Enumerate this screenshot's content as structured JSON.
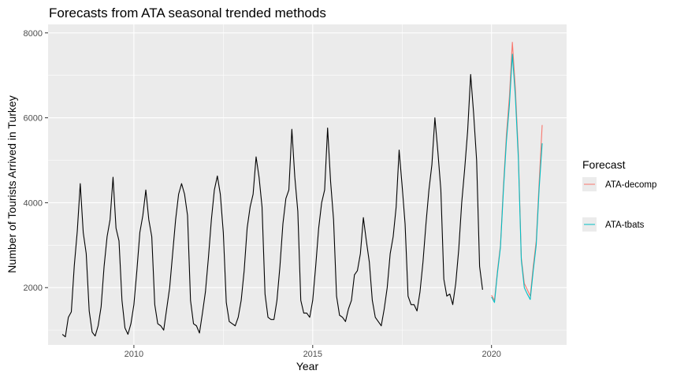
{
  "chart_data": {
    "type": "line",
    "title": "Forecasts from ATA seasonal trended methods",
    "xlabel": "Year",
    "ylabel": "Number of Tourists Arrived in Turkey",
    "xlim": [
      2007.6,
      2022.1
    ],
    "ylim": [
      650,
      8200
    ],
    "x_ticks": [
      2010,
      2015,
      2020
    ],
    "y_ticks": [
      2000,
      4000,
      6000,
      8000
    ],
    "x_tick_labels": [
      "2010",
      "2015",
      "2020"
    ],
    "y_tick_labels": [
      "2000",
      "4000",
      "6000",
      "8000"
    ],
    "grid": true,
    "legend": {
      "title": "Forecast",
      "position": "right",
      "entries": [
        "ATA-decomp",
        "ATA-tbats"
      ]
    },
    "colors": {
      "panel": "#ebebeb",
      "grid": "#ffffff",
      "history": "#000000",
      "ATA-decomp": "#f8766d",
      "ATA-tbats": "#00bfc4"
    },
    "history": {
      "start": 2008.0,
      "frequency": 12,
      "values": [
        900,
        840,
        1300,
        1430,
        2520,
        3330,
        4450,
        3300,
        2800,
        1450,
        950,
        860,
        1100,
        1550,
        2500,
        3200,
        3600,
        4600,
        3400,
        3100,
        1700,
        1050,
        900,
        1150,
        1600,
        2400,
        3300,
        3700,
        4300,
        3600,
        3200,
        1600,
        1150,
        1100,
        1000,
        1500,
        2000,
        2800,
        3600,
        4200,
        4450,
        4200,
        3700,
        1700,
        1150,
        1100,
        930,
        1400,
        1900,
        2700,
        3600,
        4300,
        4630,
        4200,
        3300,
        1650,
        1200,
        1150,
        1100,
        1300,
        1700,
        2400,
        3400,
        3900,
        4200,
        5080,
        4600,
        3900,
        1850,
        1300,
        1250,
        1250,
        1700,
        2500,
        3500,
        4100,
        4300,
        5730,
        4600,
        3800,
        1700,
        1400,
        1400,
        1300,
        1700,
        2500,
        3400,
        4000,
        4300,
        5760,
        4500,
        3600,
        1800,
        1350,
        1300,
        1200,
        1500,
        1700,
        2300,
        2400,
        2800,
        3650,
        3100,
        2600,
        1700,
        1300,
        1200,
        1100,
        1500,
        2000,
        2800,
        3200,
        3900,
        5240,
        4400,
        3500,
        1800,
        1600,
        1600,
        1450,
        1900,
        2600,
        3500,
        4300,
        4900,
        6000,
        5200,
        4300,
        2200,
        1800,
        1850,
        1600,
        2100,
        2900,
        4000,
        4800,
        5700,
        7020,
        6100,
        5000,
        2500,
        1950
      ]
    },
    "series": [
      {
        "name": "ATA-decomp",
        "start": 2020.0,
        "frequency": 12,
        "values": [
          1820,
          1700,
          2400,
          3000,
          4400,
          5600,
          6500,
          7780,
          6700,
          5200,
          2700,
          2100,
          1950,
          1800,
          2500,
          3100,
          4500,
          5830
        ]
      },
      {
        "name": "ATA-tbats",
        "start": 2020.0,
        "frequency": 12,
        "values": [
          1780,
          1650,
          2350,
          2950,
          4300,
          5450,
          6300,
          7500,
          6500,
          5050,
          2650,
          2000,
          1850,
          1720,
          2400,
          3000,
          4350,
          5400
        ]
      }
    ]
  }
}
